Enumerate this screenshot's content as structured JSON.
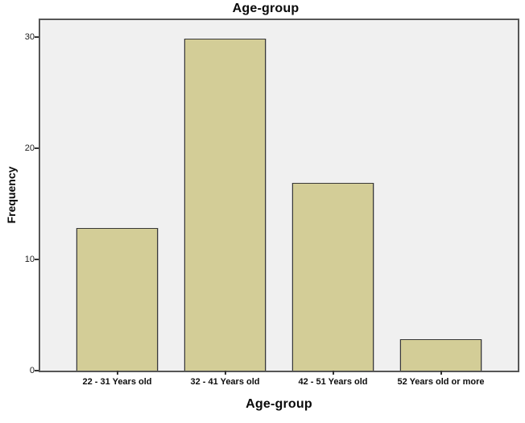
{
  "chart_data": {
    "type": "bar",
    "title": "Age-group",
    "xlabel": "Age-group",
    "ylabel": "Frequency",
    "categories": [
      "22 - 31 Years old",
      "32 - 41 Years old",
      "42 - 51 Years old",
      "52 Years old or more"
    ],
    "values": [
      13,
      30,
      17,
      3
    ],
    "yticks": [
      0,
      10,
      20,
      30
    ],
    "ylim": [
      0,
      31.7
    ],
    "grid": false,
    "legend_position": "none",
    "colors": {
      "bar_fill": "#d3cd97",
      "bar_border": "#383838",
      "plot_background": "#f0f0f0",
      "plot_border": "#565656",
      "outer_background": "#ffffff",
      "axis_text": "#1c1c1c",
      "tick_mark": "#333333"
    }
  }
}
